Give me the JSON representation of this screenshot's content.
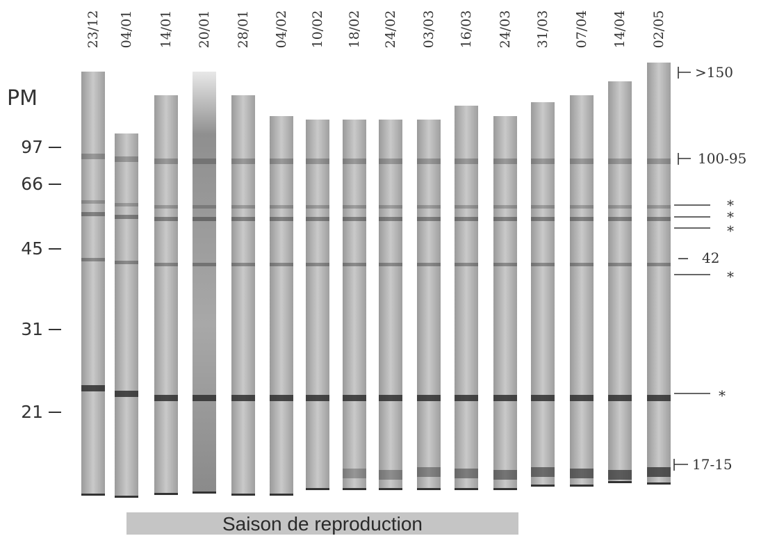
{
  "lanes": [
    "23/12",
    "04/01",
    "14/01",
    "20/01",
    "28/01",
    "04/02",
    "10/02",
    "18/02",
    "24/02",
    "03/03",
    "16/03",
    "24/03",
    "31/03",
    "07/04",
    "14/04",
    "02/05"
  ],
  "pm_label": "PM",
  "mw_markers": [
    {
      "label": "97",
      "kda": 97
    },
    {
      "label": "66",
      "kda": 66
    },
    {
      "label": "45",
      "kda": 45
    },
    {
      "label": "31",
      "kda": 31
    },
    {
      "label": "21",
      "kda": 21
    }
  ],
  "right_annotations": {
    "gt150": ">150",
    "band_100_95": "100-95",
    "star_a": "*",
    "star_b": "*",
    "star_c": "*",
    "band_42": "42",
    "star_d": "*",
    "star_e": "*",
    "band_17_15": "17-15"
  },
  "season_label": "Saison de reproduction",
  "colors": {
    "gel_light": "#d8d8d8",
    "gel_dark": "#4a4a4a",
    "band": "#2f2f2f",
    "season_bar": "#c5c5c5"
  }
}
